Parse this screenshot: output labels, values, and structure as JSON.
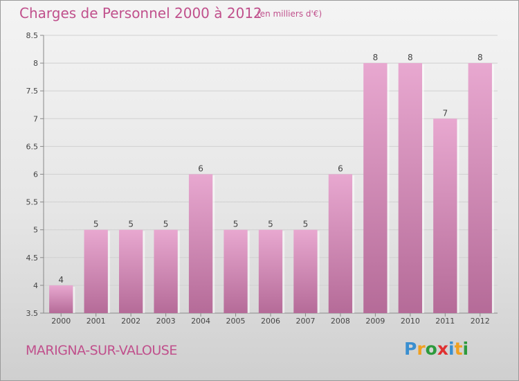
{
  "header": {
    "title": "Charges de Personnel 2000 à 2012",
    "subtitle": "(en milliers d'€)"
  },
  "footer": {
    "commune": "MARIGNA-SUR-VALOUSE",
    "logo_letters": [
      "P",
      "r",
      "o",
      "x",
      "i",
      "t",
      "i"
    ],
    "logo_colors": [
      "#3a8fd0",
      "#f0a020",
      "#2c9a3c",
      "#e03030",
      "#3a8fd0",
      "#f0a020",
      "#2c9a3c"
    ]
  },
  "colors": {
    "bar_top": "#e8a8d0",
    "bar_bottom": "#b56b98",
    "title": "#c0508c"
  },
  "chart_data": {
    "type": "bar",
    "title": "Charges de Personnel 2000 à 2012",
    "subtitle": "(en milliers d'€)",
    "categories": [
      "2000",
      "2001",
      "2002",
      "2003",
      "2004",
      "2005",
      "2006",
      "2007",
      "2008",
      "2009",
      "2010",
      "2011",
      "2012"
    ],
    "values": [
      4,
      5,
      5,
      5,
      6,
      5,
      5,
      5,
      6,
      8,
      8,
      7,
      8
    ],
    "data_labels": [
      "4",
      "5",
      "5",
      "5",
      "6",
      "5",
      "5",
      "5",
      "6",
      "8",
      "8",
      "7",
      "8"
    ],
    "ylim": [
      3.5,
      8.5
    ],
    "yticks": [
      "3.5",
      "4",
      "4.5",
      "5",
      "5.5",
      "6",
      "6.5",
      "7",
      "7.5",
      "8",
      "8.5"
    ],
    "grid": true,
    "legend": "none"
  }
}
